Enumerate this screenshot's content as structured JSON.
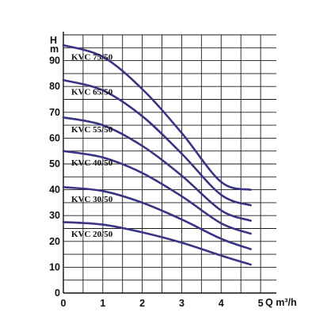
{
  "chart_data": {
    "type": "line",
    "x_axis": {
      "label": "Q m³/h",
      "ticks": [
        "0",
        "1",
        "2",
        "3",
        "4",
        "5"
      ],
      "range": [
        0,
        5.4
      ]
    },
    "y_axis": {
      "label_line1": "H",
      "label_line2": "m",
      "ticks": [
        "0",
        "10",
        "20",
        "30",
        "40",
        "50",
        "60",
        "70",
        "80",
        "90"
      ],
      "range": [
        0,
        100
      ]
    },
    "grid": true,
    "curve_color": "#3a3583",
    "series": [
      {
        "name": "KVC 75/50",
        "x": [
          0,
          1,
          2,
          3,
          4,
          4.75
        ],
        "y": [
          96,
          91.5,
          79,
          62,
          43,
          40
        ]
      },
      {
        "name": "KVC 65/50",
        "x": [
          0,
          1,
          2,
          3,
          4,
          4.75
        ],
        "y": [
          82.5,
          78.5,
          68.5,
          54,
          38,
          34
        ]
      },
      {
        "name": "KVC 55/50",
        "x": [
          0,
          1,
          2,
          3,
          4,
          4.75
        ],
        "y": [
          68,
          65,
          57,
          45.5,
          32,
          28
        ]
      },
      {
        "name": "KVC 40/50",
        "x": [
          0,
          1,
          2,
          3,
          4,
          4.75
        ],
        "y": [
          55,
          52.5,
          46.5,
          37.5,
          27,
          23
        ]
      },
      {
        "name": "KVC 30/50",
        "x": [
          0,
          1,
          2,
          3,
          4,
          4.75
        ],
        "y": [
          41,
          39.5,
          35,
          28.5,
          21,
          17
        ]
      },
      {
        "name": "KVC 20/50",
        "x": [
          0,
          1,
          2,
          3,
          4,
          4.75
        ],
        "y": [
          27.5,
          26.5,
          23.5,
          19.5,
          14.5,
          11
        ]
      }
    ]
  }
}
